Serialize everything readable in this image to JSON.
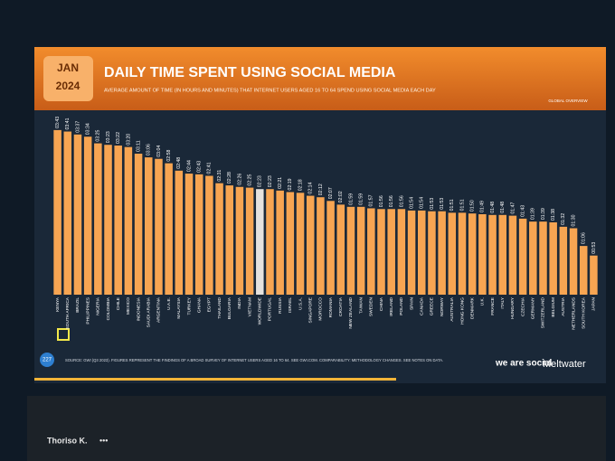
{
  "chart_data": {
    "type": "bar",
    "badge": [
      "JAN",
      "2024"
    ],
    "title": "DAILY TIME SPENT USING SOCIAL MEDIA",
    "subtitle": "AVERAGE AMOUNT OF TIME (IN HOURS AND MINUTES) THAT INTERNET USERS AGED 16 TO 64 SPEND USING SOCIAL MEDIA EACH DAY",
    "tag": "GLOBAL OVERVIEW",
    "categories": [
      "KENYA",
      "SOUTH AFRICA",
      "BRAZIL",
      "PHILIPPINES",
      "NIGERIA",
      "COLOMBIA",
      "CHILE",
      "MEXICO",
      "INDONESIA",
      "SAUDI ARABIA",
      "ARGENTINA",
      "U.A.E.",
      "MALAYSIA",
      "TURKEY",
      "GHANA",
      "EGYPT",
      "THAILAND",
      "BULGARIA",
      "INDIA",
      "VIETNAM",
      "WORLDWIDE",
      "PORTUGAL",
      "RUSSIA",
      "ISRAEL",
      "U.S.A.",
      "SINGAPORE",
      "MOROCCO",
      "ROMANIA",
      "CROATIA",
      "NEW ZEALAND",
      "TAIWAN",
      "SWEDEN",
      "CHINA",
      "IRELAND",
      "POLAND",
      "SPAIN",
      "CANADA",
      "GREECE",
      "NORWAY",
      "AUSTRALIA",
      "HONG KONG",
      "DENMARK",
      "U.K.",
      "FRANCE",
      "ITALY",
      "HUNGARY",
      "CZECHIA",
      "GERMANY",
      "SWITZERLAND",
      "BELGIUM",
      "AUSTRIA",
      "NETHERLANDS",
      "SOUTH KOREA",
      "JAPAN"
    ],
    "values": [
      223,
      221,
      217,
      214,
      205,
      203,
      202,
      200,
      191,
      186,
      184,
      178,
      168,
      164,
      163,
      161,
      151,
      148,
      146,
      145,
      143,
      143,
      141,
      139,
      138,
      134,
      132,
      127,
      122,
      119,
      119,
      117,
      116,
      116,
      116,
      114,
      114,
      113,
      113,
      111,
      111,
      110,
      109,
      108,
      108,
      107,
      103,
      99,
      99,
      98,
      92,
      90,
      66,
      53
    ],
    "value_labels": [
      "03:43",
      "03:41",
      "03:37",
      "03:34",
      "03:25",
      "03:23",
      "03:22",
      "03:20",
      "03:11",
      "03:06",
      "03:04",
      "02:58",
      "02:48",
      "02:44",
      "02:43",
      "02:41",
      "02:31",
      "02:28",
      "02:26",
      "02:25",
      "02:23",
      "02:23",
      "02:21",
      "02:19",
      "02:18",
      "02:14",
      "02:12",
      "02:07",
      "02:02",
      "01:59",
      "01:59",
      "01:57",
      "01:56",
      "01:56",
      "01:56",
      "01:54",
      "01:54",
      "01:53",
      "01:53",
      "01:51",
      "01:51",
      "01:50",
      "01:49",
      "01:48",
      "01:48",
      "01:47",
      "01:43",
      "01:39",
      "01:39",
      "01:38",
      "01:32",
      "01:30",
      "01:06",
      "00:53"
    ],
    "colors": [
      "#f7a552",
      "#f7a552",
      "#f7a552",
      "#f7a552",
      "#f7a552",
      "#f7a552",
      "#f7a552",
      "#f7a552",
      "#f7a552",
      "#f7a552",
      "#f7a552",
      "#f7a552",
      "#f7a552",
      "#f7a552",
      "#f7a552",
      "#f7a552",
      "#f7a552",
      "#f7a552",
      "#f7a552",
      "#f7a552",
      "#e6e2de",
      "#f7a552",
      "#f7a552",
      "#f7a552",
      "#f7a552",
      "#f7a552",
      "#f7a552",
      "#f7a552",
      "#f7a552",
      "#f7a552",
      "#f7a552",
      "#f7a552",
      "#f7a552",
      "#f7a552",
      "#f7a552",
      "#f7a552",
      "#f7a552",
      "#f7a552",
      "#f7a552",
      "#f7a552",
      "#f7a552",
      "#f7a552",
      "#f7a552",
      "#f7a552",
      "#f7a552",
      "#f7a552",
      "#f7a552",
      "#f7a552",
      "#f7a552",
      "#f7a552",
      "#f7a552",
      "#f7a552",
      "#f7a552",
      "#f7a552"
    ],
    "ylim": [
      0,
      240
    ],
    "source": "SOURCE: GWI (Q3 2023). FIGURES REPRESENT THE FINDINGS OF A BROAD SURVEY OF INTERNET USERS AGED 16 TO 64. SEE GWI.COM. COMPARABILITY: METHODOLOGY CHANGES. SEE NOTES ON DATA.",
    "page_number": "227",
    "brands": [
      "we are social",
      "Meltwater"
    ]
  },
  "viewer": {
    "name": "Thoriso K.",
    "menu": "•••"
  }
}
